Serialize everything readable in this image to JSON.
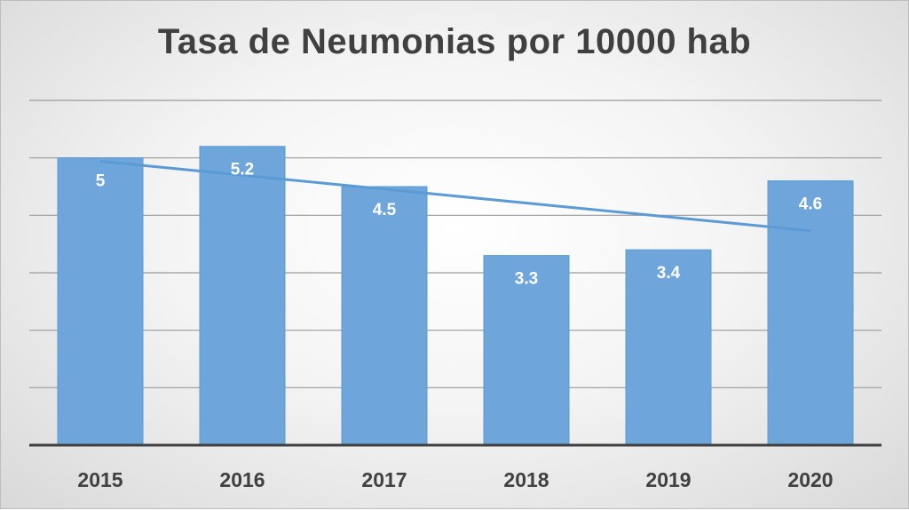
{
  "chart_data": {
    "type": "bar",
    "title": "Tasa de Neumonias por 10000 hab",
    "categories": [
      "2015",
      "2016",
      "2017",
      "2018",
      "2019",
      "2020"
    ],
    "values": [
      5,
      5.2,
      4.5,
      3.3,
      3.4,
      4.6
    ],
    "data_labels": [
      "5",
      "5.2",
      "4.5",
      "3.3",
      "3.4",
      "4.6"
    ],
    "ylim": [
      0,
      6
    ],
    "y_gridline_step": 1,
    "grid": true,
    "trendline": {
      "type": "linear",
      "color": "#5b9bd5",
      "start": 4.94,
      "end": 3.73
    },
    "colors": {
      "bar": "#6ea6dc",
      "bar_edge": "#5b9bd5",
      "grid": "#9a9a9a",
      "axis": "#404040",
      "title": "#404040"
    }
  }
}
